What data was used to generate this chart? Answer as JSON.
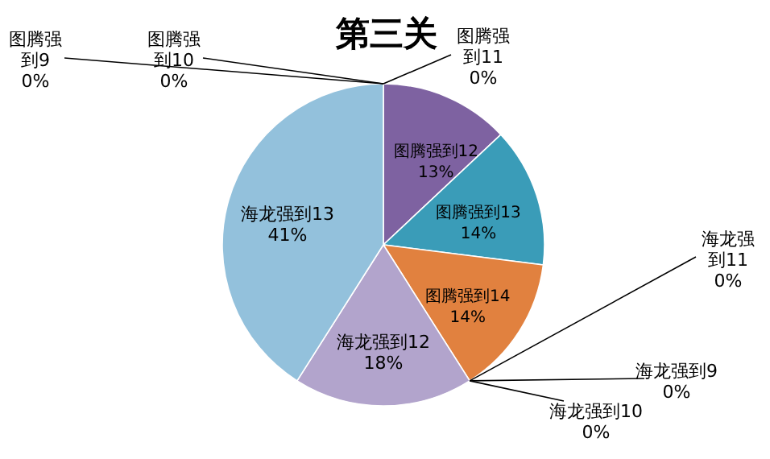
{
  "chart_data": {
    "type": "pie",
    "title": "第三关",
    "categories": [
      "图腾强到11",
      "图腾强到12",
      "图腾强到13",
      "图腾强到14",
      "海龙强到11",
      "海龙强到9",
      "海龙强到10",
      "海龙强到12",
      "海龙强到13",
      "图腾强到9",
      "图腾强到10"
    ],
    "values": [
      0,
      13,
      14,
      14,
      0,
      0,
      0,
      18,
      41,
      0,
      0
    ],
    "value_labels": [
      "0%",
      "13%",
      "14%",
      "14%",
      "0%",
      "0%",
      "0%",
      "18%",
      "41%",
      "0%",
      "0%"
    ],
    "colors": [
      "#4f81bd",
      "#7e62a1",
      "#3a9cb8",
      "#e1813f",
      "#9bbb59",
      "#c0504d",
      "#f2a45a",
      "#b2a4cc",
      "#93c1dc",
      "#8064a2",
      "#4bacc6"
    ]
  }
}
